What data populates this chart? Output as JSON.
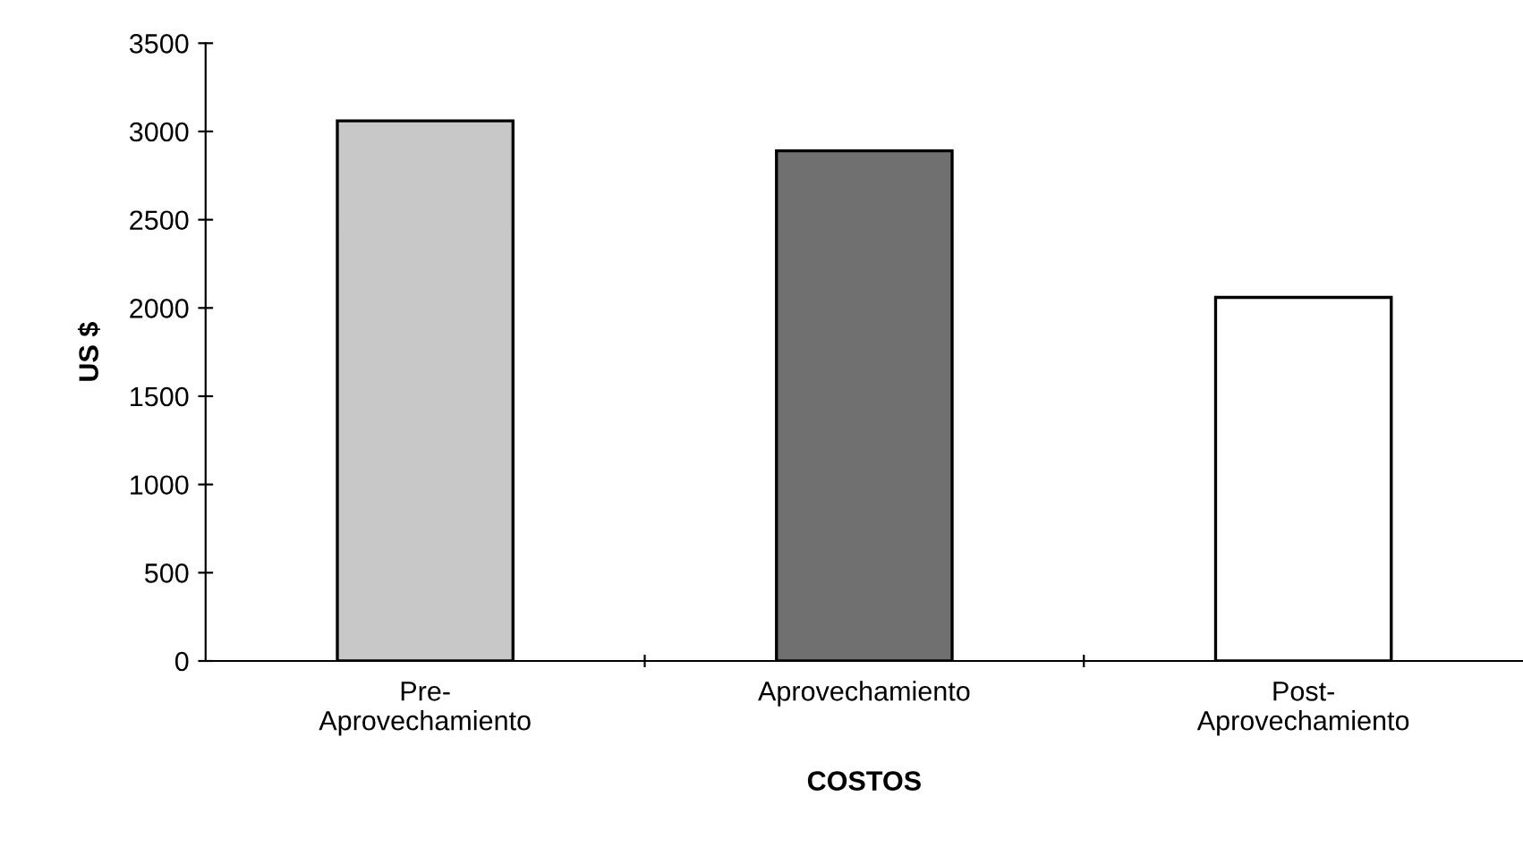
{
  "chart_data": {
    "type": "bar",
    "xlabel": "COSTOS",
    "ylabel": "US $",
    "categories": [
      "Pre-\nAprovechamiento",
      "Aprovechamiento",
      "Post-\nAprovechamiento"
    ],
    "values": [
      3060,
      2890,
      2060
    ],
    "colors": [
      "#c8c8c8",
      "#707070",
      "#ffffff"
    ],
    "ylim": [
      0,
      3500
    ],
    "yticks": [
      0,
      500,
      1000,
      1500,
      2000,
      2500,
      3000,
      3500
    ],
    "grid": false,
    "legend": false
  }
}
